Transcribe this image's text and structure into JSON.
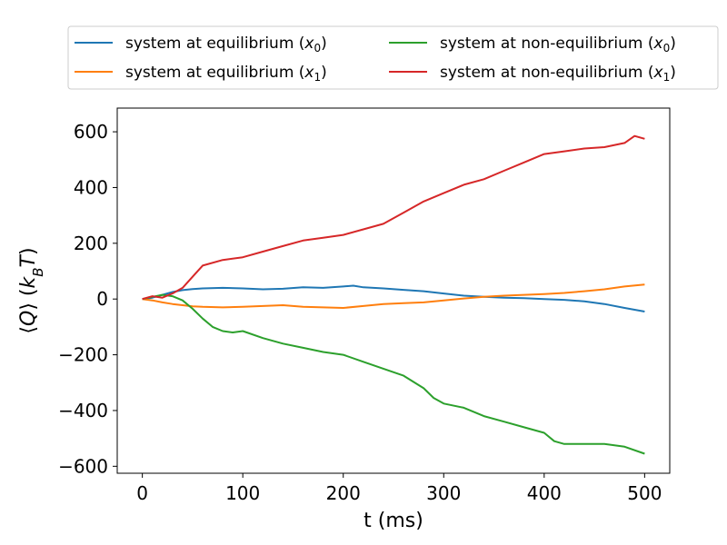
{
  "chart_data": {
    "type": "line",
    "xlabel": "t (ms)",
    "ylabel": "⟨Q⟩ (k_B T)",
    "xlim": [
      -25,
      525
    ],
    "ylim": [
      -625,
      685
    ],
    "x_ticks": [
      0,
      100,
      200,
      300,
      400,
      500
    ],
    "y_ticks": [
      -600,
      -400,
      -200,
      0,
      200,
      400,
      600
    ],
    "grid": false,
    "legend_position": "top-center (above plot, 2 columns)",
    "series": [
      {
        "name": "system at equilibrium (x0)",
        "label_main": "system at equilibrium (",
        "label_var": "x",
        "label_sub": "0",
        "label_close": ")",
        "color": "#1f77b4",
        "x": [
          0,
          10,
          20,
          30,
          40,
          50,
          60,
          80,
          100,
          120,
          140,
          160,
          180,
          200,
          210,
          220,
          240,
          260,
          280,
          300,
          320,
          340,
          360,
          380,
          400,
          420,
          440,
          460,
          480,
          500
        ],
        "y": [
          0,
          5,
          15,
          25,
          32,
          36,
          38,
          40,
          38,
          35,
          37,
          42,
          40,
          45,
          48,
          42,
          38,
          33,
          28,
          20,
          12,
          8,
          5,
          3,
          0,
          -3,
          -8,
          -18,
          -32,
          -45
        ]
      },
      {
        "name": "system at equilibrium (x1)",
        "label_main": "system at equilibrium (",
        "label_var": "x",
        "label_sub": "1",
        "label_close": ")",
        "color": "#ff7f0e",
        "x": [
          0,
          10,
          20,
          30,
          40,
          50,
          60,
          80,
          100,
          120,
          140,
          160,
          180,
          200,
          220,
          240,
          260,
          280,
          300,
          320,
          340,
          360,
          380,
          400,
          420,
          440,
          460,
          480,
          500
        ],
        "y": [
          0,
          -5,
          -12,
          -18,
          -22,
          -26,
          -28,
          -30,
          -28,
          -25,
          -22,
          -28,
          -30,
          -32,
          -25,
          -18,
          -15,
          -12,
          -5,
          2,
          8,
          12,
          15,
          18,
          22,
          28,
          35,
          45,
          52
        ]
      },
      {
        "name": "system at non-equilibrium (x0)",
        "label_main": "system at non-equilibrium (",
        "label_var": "x",
        "label_sub": "0",
        "label_close": ")",
        "color": "#2ca02c",
        "x": [
          0,
          10,
          20,
          30,
          40,
          50,
          60,
          70,
          80,
          90,
          100,
          120,
          140,
          160,
          180,
          200,
          220,
          240,
          260,
          280,
          290,
          300,
          320,
          340,
          360,
          380,
          400,
          410,
          420,
          440,
          460,
          480,
          500
        ],
        "y": [
          0,
          8,
          15,
          10,
          -5,
          -35,
          -70,
          -100,
          -115,
          -120,
          -115,
          -140,
          -160,
          -175,
          -190,
          -200,
          -225,
          -250,
          -275,
          -320,
          -355,
          -375,
          -390,
          -420,
          -440,
          -460,
          -480,
          -510,
          -520,
          -520,
          -520,
          -530,
          -555
        ]
      },
      {
        "name": "system at non-equilibrium (x1)",
        "label_main": "system at non-equilibrium (",
        "label_var": "x",
        "label_sub": "1",
        "label_close": ")",
        "color": "#d62728",
        "x": [
          0,
          10,
          20,
          30,
          40,
          50,
          60,
          80,
          100,
          120,
          140,
          160,
          180,
          200,
          220,
          240,
          260,
          280,
          300,
          320,
          340,
          360,
          380,
          400,
          420,
          440,
          460,
          480,
          490,
          500
        ],
        "y": [
          0,
          10,
          5,
          20,
          40,
          80,
          120,
          140,
          150,
          170,
          190,
          210,
          220,
          230,
          250,
          270,
          310,
          350,
          380,
          410,
          430,
          460,
          490,
          520,
          530,
          540,
          545,
          560,
          585,
          575
        ]
      }
    ]
  }
}
